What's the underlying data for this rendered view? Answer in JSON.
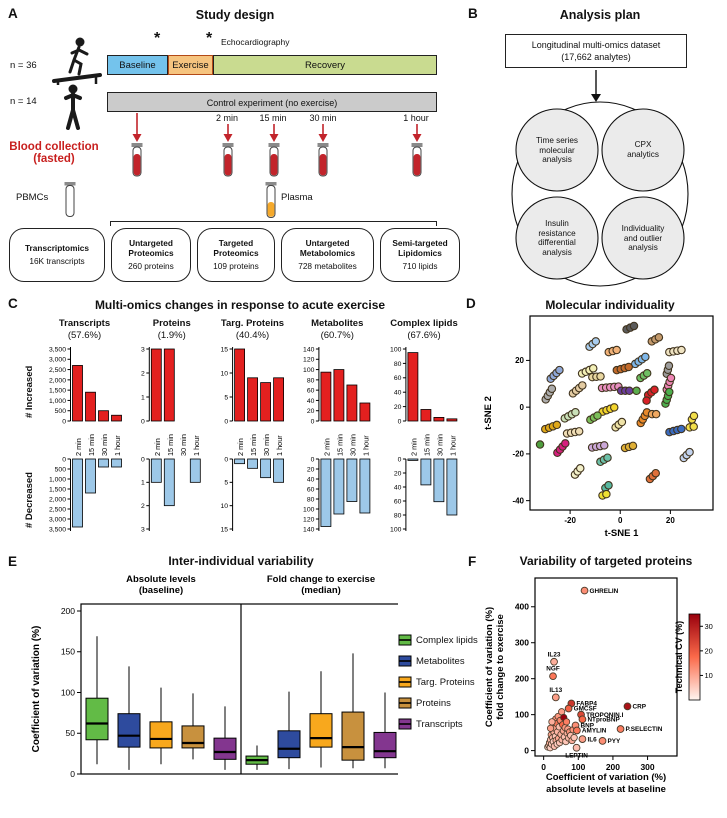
{
  "panel_a": {
    "label": "A",
    "title": "Study design",
    "n_exercise": "n = 36",
    "n_control": "n = 14",
    "phases": [
      "Baseline",
      "Exercise",
      "Recovery"
    ],
    "phase_colors": [
      "#74C3EC",
      "#F6C47F",
      "#C9DB90"
    ],
    "asterisk": "*",
    "echo_label": "Echocardiography",
    "control_label": "Control experiment (no exercise)",
    "control_color": "#CBCBCB",
    "timepoints": [
      "2 min",
      "15 min",
      "30 min",
      "1 hour"
    ],
    "blood_label": "Blood collection\n(fasted)",
    "blood_color": "#C2242B",
    "pbmcs_label": "PBMCs",
    "plasma_label": "Plasma",
    "plasma_color": "#F5A92B",
    "assays": [
      {
        "name": "Transcriptomics",
        "detail": "16K transcripts"
      },
      {
        "name": "Untargeted\nProteomics",
        "detail": "260 proteins"
      },
      {
        "name": "Targeted\nProteomics",
        "detail": "109 proteins"
      },
      {
        "name": "Untargeted\nMetabolomics",
        "detail": "728 metabolites"
      },
      {
        "name": "Semi-targeted\nLipidomics",
        "detail": "710 lipids"
      }
    ]
  },
  "panel_b": {
    "label": "B",
    "title": "Analysis plan",
    "dataset_box": "Longitudinal multi-omics dataset\n(17,662 analytes)",
    "circles": [
      "Time series\nmolecular\nanalysis",
      "CPX\nanalytics",
      "Insulin\nresistance\ndifferential\nanalysis",
      "Individuality\nand outlier\nanalysis"
    ]
  },
  "panel_c": {
    "label": "C",
    "title": "Multi-omics changes in response to acute exercise",
    "increased_label": "# Increased",
    "decreased_label": "# Decreased"
  },
  "panel_d": {
    "label": "D"
  },
  "panel_e": {
    "label": "E"
  },
  "panel_f": {
    "label": "F"
  },
  "chart_data": [
    {
      "type": "bar-pair",
      "id": "transcripts",
      "title": "Transcripts",
      "subtitle": "(57.6%)",
      "categories": [
        "2 min",
        "15 min",
        "30 min",
        "1 hour"
      ],
      "increased": [
        2700,
        1400,
        500,
        280
      ],
      "decreased": [
        3400,
        1700,
        400,
        400
      ],
      "ymax": 3500,
      "yticks": [
        0,
        500,
        1000,
        1500,
        2000,
        2500,
        3000,
        3500
      ],
      "ytick_labels": [
        "0",
        "500",
        "1,000",
        "1,500",
        "2,000",
        "2,500",
        "3,000",
        "3,500"
      ],
      "increased_color": "#E3201F",
      "decreased_color": "#9DC8E8"
    },
    {
      "type": "bar-pair",
      "id": "proteins",
      "title": "Proteins",
      "subtitle": "(1.9%)",
      "categories": [
        "2 min",
        "15 min",
        "30 min",
        "1 hour"
      ],
      "increased": [
        3,
        3,
        0,
        0
      ],
      "decreased": [
        1,
        2,
        0,
        1
      ],
      "ymax": 3,
      "yticks": [
        0,
        1,
        2,
        3
      ],
      "ytick_labels": [
        "0",
        "1",
        "2",
        "3"
      ],
      "increased_color": "#E3201F",
      "decreased_color": "#9DC8E8"
    },
    {
      "type": "bar-pair",
      "id": "targ-proteins",
      "title": "Targ. Proteins",
      "subtitle": "(40.4%)",
      "categories": [
        "2 min",
        "15 min",
        "30 min",
        "1 hour"
      ],
      "increased": [
        15,
        9,
        8,
        9
      ],
      "decreased": [
        1,
        2,
        4,
        5
      ],
      "ymax": 15,
      "yticks": [
        0,
        5,
        10,
        15
      ],
      "ytick_labels": [
        "0",
        "5",
        "10",
        "15"
      ],
      "increased_color": "#E3201F",
      "decreased_color": "#9DC8E8"
    },
    {
      "type": "bar-pair",
      "id": "metabolites",
      "title": "Metabolites",
      "subtitle": "(60.7%)",
      "categories": [
        "2 min",
        "15 min",
        "30 min",
        "1 hour"
      ],
      "increased": [
        95,
        100,
        70,
        35
      ],
      "decreased": [
        135,
        110,
        85,
        108
      ],
      "ymax": 140,
      "yticks": [
        0,
        20,
        40,
        60,
        80,
        100,
        120,
        140
      ],
      "ytick_labels": [
        "0",
        "20",
        "40",
        "60",
        "80",
        "100",
        "120",
        "140"
      ],
      "increased_color": "#E3201F",
      "decreased_color": "#9DC8E8"
    },
    {
      "type": "bar-pair",
      "id": "complex-lipids",
      "title": "Complex lipids",
      "subtitle": "(67.6%)",
      "categories": [
        "2 min",
        "15 min",
        "30 min",
        "1 hour"
      ],
      "increased": [
        95,
        16,
        5,
        3
      ],
      "decreased": [
        2,
        37,
        61,
        80
      ],
      "ymax": 100,
      "yticks": [
        0,
        20,
        40,
        60,
        80,
        100
      ],
      "ytick_labels": [
        "0",
        "20",
        "40",
        "60",
        "80",
        "100"
      ],
      "increased_color": "#E3201F",
      "decreased_color": "#9DC8E8"
    },
    {
      "type": "tsne-scatter",
      "id": "tsne",
      "title": "Molecular individuality",
      "xlabel": "t-SNE 1",
      "ylabel": "t-SNE 2",
      "xticks": [
        -20,
        0,
        20
      ],
      "yticks": [
        -40,
        -20,
        0,
        20
      ],
      "xlim": [
        -36,
        37
      ],
      "ylim": [
        -44,
        39
      ],
      "clusters": [
        [
          4,
          34,
          "#5B5B5B",
          3,
          25
        ],
        [
          14,
          29,
          "#C49A6C",
          3,
          30
        ],
        [
          -11,
          27,
          "#A9CDEF",
          3,
          40
        ],
        [
          -3,
          24,
          "#F2B279",
          3,
          15
        ],
        [
          22,
          24,
          "#EFE3C2",
          4,
          10
        ],
        [
          8,
          20,
          "#7EB6E8",
          4,
          35
        ],
        [
          19,
          16,
          "#9C9C9C",
          3,
          75
        ],
        [
          -26,
          14,
          "#8FA8D8",
          4,
          45
        ],
        [
          -13,
          15.5,
          "#F2EFB6",
          4,
          25
        ],
        [
          -9.5,
          13,
          "#E8D6A0",
          3,
          5
        ],
        [
          1,
          16.5,
          "#C26A2A",
          4,
          15
        ],
        [
          9.4,
          13.5,
          "#6FBF63",
          3,
          35
        ],
        [
          19.4,
          10,
          "#EE85B5",
          4,
          70
        ],
        [
          -28.5,
          5.6,
          "#ACACAC",
          4,
          60
        ],
        [
          -17,
          7.6,
          "#E3CBA2",
          4,
          40
        ],
        [
          -4,
          8.5,
          "#E98FC0",
          5,
          5
        ],
        [
          2,
          7,
          "#6A3D9A",
          3,
          0
        ],
        [
          6.5,
          7,
          "#5BAD4E",
          1,
          0
        ],
        [
          12.4,
          6.3,
          "#D92127",
          3,
          40
        ],
        [
          10.5,
          2.8,
          "#D92127",
          1,
          0
        ],
        [
          18.8,
          4,
          "#4DAE4D",
          4,
          72
        ],
        [
          -4.7,
          -1,
          "#F2D42C",
          4,
          20
        ],
        [
          -20,
          -3.5,
          "#C9E0B8",
          4,
          30
        ],
        [
          -10.5,
          -4.5,
          "#7CBF5A",
          3,
          30
        ],
        [
          9.4,
          -4.5,
          "#E8892B",
          4,
          60
        ],
        [
          13.5,
          -3,
          "#F0A860",
          2,
          0
        ],
        [
          29,
          -4.5,
          "#F2DE4A",
          2,
          60
        ],
        [
          28.5,
          -8.5,
          "#F2DE4A",
          2,
          10
        ],
        [
          -27.6,
          -8.5,
          "#E0A818",
          4,
          20
        ],
        [
          -18.8,
          -10.8,
          "#EFDDB5",
          4,
          10
        ],
        [
          -0.6,
          -7.5,
          "#EFE3A8",
          3,
          40
        ],
        [
          22,
          -10,
          "#3A6BBF",
          4,
          15
        ],
        [
          -32,
          -16,
          "#4F9E3F",
          1,
          0
        ],
        [
          -23.5,
          -17.5,
          "#D61F7E",
          4,
          50
        ],
        [
          -8.8,
          -16.8,
          "#CBA8D8",
          4,
          10
        ],
        [
          -6.5,
          -22.5,
          "#6CC0A8",
          3,
          30
        ],
        [
          3.5,
          -17,
          "#DFAF35",
          3,
          15
        ],
        [
          26.5,
          -20.5,
          "#C3D3EE",
          3,
          45
        ],
        [
          -17,
          -27.5,
          "#F2EFC8",
          3,
          50
        ],
        [
          13,
          -29.5,
          "#E0703A",
          3,
          45
        ],
        [
          -5.3,
          -34,
          "#57B8A0",
          2,
          40
        ],
        [
          -6.3,
          -37.5,
          "#EFE032",
          2,
          20
        ]
      ]
    },
    {
      "type": "box",
      "id": "variability",
      "title": "Inter-individual variability",
      "ylabel": "Coefficient of variation (%)",
      "yticks": [
        0,
        50,
        100,
        150,
        200
      ],
      "ylim": [
        0,
        210
      ],
      "legend": [
        {
          "label": "Complex lipids",
          "color": "#62BB46"
        },
        {
          "label": "Metabolites",
          "color": "#2E4B9E"
        },
        {
          "label": "Targ. Proteins",
          "color": "#F8A81D"
        },
        {
          "label": "Proteins",
          "color": "#C8913E"
        },
        {
          "label": "Transcripts",
          "color": "#83368F"
        }
      ],
      "facets": [
        {
          "label": "Absolute levels\n(baseline)",
          "boxes": [
            [
              12,
              42,
              62,
              93,
              169
            ],
            [
              5,
              33,
              47,
              74,
              132
            ],
            [
              12,
              32,
              43,
              64,
              106
            ],
            [
              18,
              32,
              38,
              59,
              99
            ],
            [
              5,
              18,
              27,
              44,
              83
            ]
          ]
        },
        {
          "label": "Fold change to exercise\n(median)",
          "boxes": [
            [
              5,
              12,
              17,
              22,
              35
            ],
            [
              6,
              20,
              31,
              53,
              101
            ],
            [
              8,
              33,
              44,
              74,
              126
            ],
            [
              7,
              17,
              33,
              76,
              148
            ],
            [
              7,
              20,
              28,
              51,
              100
            ]
          ]
        }
      ]
    },
    {
      "type": "cv-scatter",
      "id": "targeted-proteins",
      "title": "Variability of targeted proteins",
      "xlabel_lines": [
        "Coefficient of variation (%)",
        "absolute levels at baseline"
      ],
      "ylabel_lines": [
        "Coefficient of variation (%)",
        "fold change to exercise"
      ],
      "xticks": [
        0,
        100,
        200,
        300
      ],
      "yticks": [
        0,
        100,
        200,
        300,
        400
      ],
      "xlim": [
        -25,
        385
      ],
      "ylim": [
        -15,
        480
      ],
      "colorbar": {
        "label": "Technical CV (%)",
        "ticks": [
          10,
          20,
          30
        ],
        "min": 0,
        "max": 35
      },
      "labeled_points": [
        {
          "name": "GHRELIN",
          "x": 118,
          "y": 445,
          "cv": 13,
          "anchor": "r"
        },
        {
          "name": "IL23",
          "x": 30,
          "y": 247,
          "cv": 9,
          "anchor": "t"
        },
        {
          "name": "NGF",
          "x": 27,
          "y": 207,
          "cv": 16,
          "anchor": "t"
        },
        {
          "name": "IL13",
          "x": 35,
          "y": 148,
          "cv": 11,
          "anchor": "t"
        },
        {
          "name": "FABP4",
          "x": 80,
          "y": 131,
          "cv": 26,
          "anchor": "r"
        },
        {
          "name": "GMCSF",
          "x": 72,
          "y": 117,
          "cv": 19,
          "anchor": "r"
        },
        {
          "name": "CRP",
          "x": 242,
          "y": 123,
          "cv": 32,
          "anchor": "r"
        },
        {
          "name": "TROPONIN.I",
          "x": 108,
          "y": 100,
          "cv": 23,
          "anchor": "r"
        },
        {
          "name": "NTproBNP",
          "x": 112,
          "y": 87,
          "cv": 18,
          "anchor": "r"
        },
        {
          "name": "BNP",
          "x": 92,
          "y": 70,
          "cv": 13,
          "anchor": "r"
        },
        {
          "name": "AMYLIN",
          "x": 96,
          "y": 56,
          "cv": 16,
          "anchor": "r"
        },
        {
          "name": "P.SELECTIN",
          "x": 222,
          "y": 60,
          "cv": 15,
          "anchor": "r"
        },
        {
          "name": "IL6",
          "x": 112,
          "y": 32,
          "cv": 11,
          "anchor": "r"
        },
        {
          "name": "PYY",
          "x": 170,
          "y": 27,
          "cv": 13,
          "anchor": "r"
        },
        {
          "name": "LEPTIN",
          "x": 95,
          "y": 8,
          "cv": 7,
          "anchor": "b"
        }
      ],
      "points": [
        [
          12,
          10,
          4
        ],
        [
          15,
          14,
          6
        ],
        [
          17,
          22,
          9
        ],
        [
          19,
          8,
          5
        ],
        [
          20,
          30,
          7
        ],
        [
          22,
          44,
          10
        ],
        [
          23,
          18,
          6
        ],
        [
          25,
          58,
          12
        ],
        [
          26,
          36,
          8
        ],
        [
          28,
          25,
          5
        ],
        [
          28,
          70,
          14
        ],
        [
          30,
          50,
          9
        ],
        [
          31,
          12,
          7
        ],
        [
          33,
          62,
          11
        ],
        [
          34,
          40,
          6
        ],
        [
          35,
          88,
          13
        ],
        [
          36,
          28,
          9
        ],
        [
          38,
          75,
          16
        ],
        [
          39,
          18,
          5
        ],
        [
          40,
          52,
          8
        ],
        [
          42,
          95,
          12
        ],
        [
          43,
          34,
          10
        ],
        [
          45,
          66,
          7
        ],
        [
          46,
          22,
          6
        ],
        [
          48,
          84,
          14
        ],
        [
          50,
          45,
          9
        ],
        [
          52,
          108,
          11
        ],
        [
          53,
          30,
          8
        ],
        [
          55,
          72,
          18
        ],
        [
          57,
          55,
          10
        ],
        [
          58,
          92,
          35
        ],
        [
          60,
          38,
          7
        ],
        [
          62,
          64,
          12
        ],
        [
          64,
          25,
          6
        ],
        [
          66,
          80,
          15
        ],
        [
          68,
          48,
          9
        ],
        [
          70,
          60,
          11
        ],
        [
          72,
          35,
          8
        ],
        [
          75,
          52,
          13
        ],
        [
          78,
          42,
          7
        ],
        [
          82,
          28,
          9
        ],
        [
          85,
          58,
          12
        ],
        [
          88,
          36,
          6
        ],
        [
          20,
          62,
          11
        ],
        [
          24,
          80,
          9
        ]
      ]
    }
  ]
}
